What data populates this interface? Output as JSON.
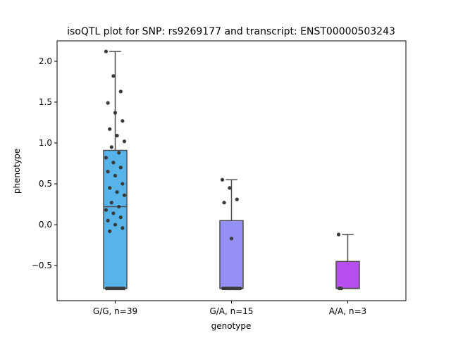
{
  "chart_data": {
    "type": "box",
    "title": "isoQTL plot for SNP: rs9269177 and transcript: ENST00000503243",
    "xlabel": "genotype",
    "ylabel": "phenotype",
    "ylim": [
      -0.93,
      2.25
    ],
    "yticks": [
      -0.5,
      0.0,
      0.5,
      1.0,
      1.5,
      2.0
    ],
    "ytick_labels": [
      "−0.5",
      "0.0",
      "0.5",
      "1.0",
      "1.5",
      "2.0"
    ],
    "categories": [
      "G/G, n=39",
      "G/A, n=15",
      "A/A, n=3"
    ],
    "grid": false,
    "legend": "none",
    "colors": [
      "#56b4e9",
      "#9490f5",
      "#b74ef0"
    ],
    "point_color": "#3a3a3a",
    "boxes": [
      {
        "category": "G/G, n=39",
        "whisker_low": -0.78,
        "q1": -0.78,
        "median": 0.22,
        "q3": 0.91,
        "whisker_high": 2.12
      },
      {
        "category": "G/A, n=15",
        "whisker_low": -0.78,
        "q1": -0.78,
        "median": -0.78,
        "q3": 0.05,
        "whisker_high": 0.55
      },
      {
        "category": "A/A, n=3",
        "whisker_low": -0.78,
        "q1": -0.78,
        "median": -0.78,
        "q3": -0.45,
        "whisker_high": -0.12
      }
    ],
    "points": [
      {
        "category": 0,
        "values": [
          2.12,
          1.82,
          1.63,
          1.49,
          1.37,
          1.27,
          1.17,
          1.09,
          1.02,
          0.95,
          0.88,
          0.82,
          0.76,
          0.7,
          0.65,
          0.6,
          0.5,
          0.45,
          0.4,
          0.36,
          0.27,
          0.22,
          0.18,
          0.14,
          0.09,
          0.05,
          0.0,
          -0.04,
          -0.08,
          -0.78,
          -0.78,
          -0.78,
          -0.78,
          -0.78,
          -0.78,
          -0.78,
          -0.78,
          -0.78,
          -0.78
        ]
      },
      {
        "category": 1,
        "values": [
          0.55,
          0.45,
          0.31,
          0.27,
          -0.17,
          -0.78,
          -0.78,
          -0.78,
          -0.78,
          -0.78,
          -0.78,
          -0.78,
          -0.78,
          -0.78,
          -0.78
        ]
      },
      {
        "category": 2,
        "values": [
          -0.12,
          -0.78,
          -0.78
        ]
      }
    ]
  }
}
